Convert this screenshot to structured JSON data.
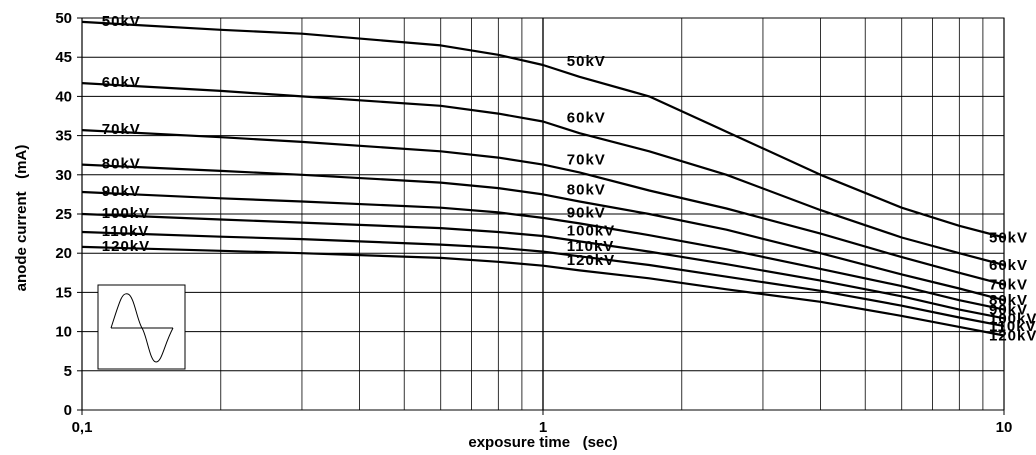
{
  "chart_data": {
    "type": "line",
    "xlabel": "exposure time   (sec)",
    "ylabel": "anode current   (mA)",
    "x_scale": "log",
    "xlim": [
      0.1,
      10
    ],
    "ylim": [
      0,
      50
    ],
    "x_ticks": [
      "0,1",
      "1",
      "10"
    ],
    "y_ticks": [
      "0",
      "5",
      "10",
      "15",
      "20",
      "25",
      "30",
      "35",
      "40",
      "45",
      "50"
    ],
    "grid": true,
    "legend_icon": "sine-wave-icon",
    "series": [
      {
        "name": "50kV",
        "x": [
          0.1,
          0.2,
          0.3,
          0.6,
          0.8,
          1.0,
          1.2,
          1.7,
          2.5,
          4.0,
          6.0,
          8.0,
          10.0
        ],
        "y": [
          49.5,
          48.5,
          48.0,
          46.5,
          45.3,
          44.0,
          42.5,
          40.0,
          35.5,
          30.0,
          25.8,
          23.5,
          22.0
        ],
        "label_positions_x": [
          0.105,
          1.05,
          10.2
        ]
      },
      {
        "name": "60kV",
        "x": [
          0.1,
          0.2,
          0.3,
          0.6,
          0.8,
          1.0,
          1.2,
          1.7,
          2.5,
          4.0,
          6.0,
          8.0,
          10.0
        ],
        "y": [
          41.7,
          40.7,
          40.0,
          38.8,
          37.8,
          36.8,
          35.3,
          33.0,
          30.0,
          25.5,
          22.0,
          20.0,
          18.5
        ],
        "label_positions_x": [
          0.105,
          1.05,
          10.2
        ]
      },
      {
        "name": "70kV",
        "x": [
          0.1,
          0.2,
          0.3,
          0.6,
          0.8,
          1.0,
          1.2,
          1.7,
          2.5,
          4.0,
          6.0,
          8.0,
          10.0
        ],
        "y": [
          35.7,
          34.8,
          34.2,
          33.0,
          32.2,
          31.3,
          30.3,
          28.0,
          25.7,
          22.5,
          19.5,
          17.5,
          16.0
        ],
        "label_positions_x": [
          0.105,
          1.05,
          10.2
        ]
      },
      {
        "name": "80kV",
        "x": [
          0.1,
          0.2,
          0.3,
          0.6,
          0.8,
          1.0,
          1.2,
          1.7,
          2.5,
          4.0,
          6.0,
          8.0,
          10.0
        ],
        "y": [
          31.3,
          30.5,
          30.0,
          29.0,
          28.3,
          27.5,
          26.6,
          25.0,
          23.0,
          20.0,
          17.3,
          15.5,
          14.0
        ],
        "label_positions_x": [
          0.105,
          1.05,
          10.2
        ]
      },
      {
        "name": "90kV",
        "x": [
          0.1,
          0.2,
          0.3,
          0.6,
          0.8,
          1.0,
          1.2,
          1.7,
          2.5,
          4.0,
          6.0,
          8.0,
          10.0
        ],
        "y": [
          27.8,
          27.0,
          26.6,
          25.8,
          25.2,
          24.5,
          23.8,
          22.3,
          20.5,
          18.0,
          15.8,
          14.0,
          12.8
        ],
        "label_positions_x": [
          0.105,
          1.05,
          10.2
        ]
      },
      {
        "name": "100kV",
        "x": [
          0.1,
          0.2,
          0.3,
          0.6,
          0.8,
          1.0,
          1.2,
          1.7,
          2.5,
          4.0,
          6.0,
          8.0,
          10.0
        ],
        "y": [
          25.0,
          24.3,
          23.9,
          23.2,
          22.7,
          22.2,
          21.5,
          20.2,
          18.6,
          16.5,
          14.5,
          12.8,
          11.7
        ],
        "label_positions_x": [
          0.105,
          1.05,
          10.2
        ]
      },
      {
        "name": "110kV",
        "x": [
          0.1,
          0.2,
          0.3,
          0.6,
          0.8,
          1.0,
          1.2,
          1.7,
          2.5,
          4.0,
          6.0,
          8.0,
          10.0
        ],
        "y": [
          22.7,
          22.1,
          21.8,
          21.1,
          20.7,
          20.2,
          19.6,
          18.5,
          17.0,
          15.2,
          13.3,
          11.8,
          10.7
        ],
        "label_positions_x": [
          0.105,
          1.05,
          10.2
        ]
      },
      {
        "name": "120kV",
        "x": [
          0.1,
          0.2,
          0.3,
          0.6,
          0.8,
          1.0,
          1.2,
          1.7,
          2.5,
          4.0,
          6.0,
          8.0,
          10.0
        ],
        "y": [
          20.8,
          20.3,
          20.0,
          19.4,
          18.9,
          18.4,
          17.8,
          16.8,
          15.4,
          13.8,
          12.0,
          10.6,
          9.5
        ],
        "label_positions_x": [
          0.105,
          1.05,
          10.2
        ]
      }
    ]
  }
}
